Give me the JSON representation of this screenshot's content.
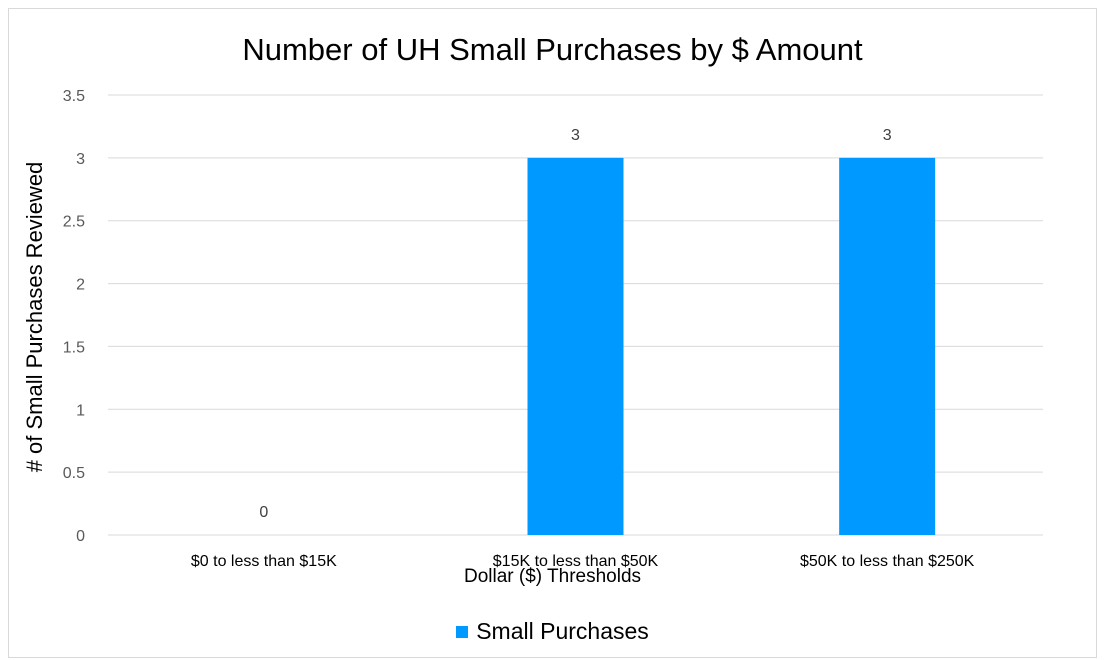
{
  "chart_data": {
    "type": "bar",
    "title": "Number of UH Small Purchases by $ Amount",
    "xlabel": "Dollar ($) Thresholds",
    "ylabel": "# of Small Purchases Reviewed",
    "categories": [
      "$0 to less than $15K",
      "$15K to less than $50K",
      "$50K to less than $250K"
    ],
    "series": [
      {
        "name": "Small Purchases",
        "values": [
          0,
          3,
          3
        ]
      }
    ],
    "data_labels": [
      "0",
      "3",
      "3"
    ],
    "ylim": [
      0,
      3.5
    ],
    "yticks": [
      "0",
      "0.5",
      "1",
      "1.5",
      "2",
      "2.5",
      "3",
      "3.5"
    ],
    "grid": true,
    "legend_position": "bottom",
    "bar_color": "#0099ff"
  }
}
